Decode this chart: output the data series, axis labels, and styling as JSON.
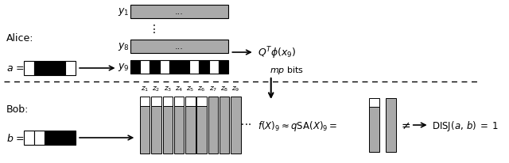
{
  "bg_color": "#ffffff",
  "figure_width": 6.4,
  "figure_height": 2.07,
  "dpi": 100,
  "alice_label": "Alice:",
  "bob_label": "Bob:",
  "alice_a_pattern": [
    0,
    1,
    1,
    1,
    0
  ],
  "bob_b_pattern": [
    0,
    0,
    1,
    1,
    1
  ],
  "y1_bar_color": "#aaaaaa",
  "y8_bar_color": "#aaaaaa",
  "y9_pattern": [
    1,
    0,
    1,
    0,
    1,
    1,
    0,
    1,
    0,
    1
  ],
  "z_labels": [
    "$z_1$",
    "$z_2$",
    "$z_3$",
    "$z_4$",
    "$z_5$",
    "$z_6$",
    "$z_7$",
    "$z_8$",
    "$z_9$"
  ],
  "z_bar_color": "#aaaaaa",
  "z_top_white": [
    1,
    1,
    1,
    1,
    1,
    1,
    0,
    0,
    0
  ],
  "cmp_bar1_top_white": true,
  "cmp_bar2_top_white": false,
  "text_qt_phi": "$Q^T\\phi(x_9)$",
  "text_mp_bits": "$mp$ bits",
  "text_eq": "$f(X)_9 \\approx q\\mathrm{SA}(X)_9 = $",
  "text_neq": "$\\neq$",
  "text_disj": "$\\mathrm{DISJ}(a,\\, b) \\; = \\; 1$"
}
